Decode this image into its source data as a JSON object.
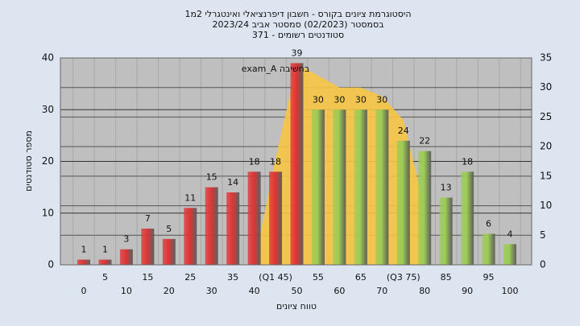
{
  "chart_data": {
    "type": "bar",
    "title_lines": [
      "היסטוגרמת ציונים בקורס - חשבון דיפרנציאלי ואינטגרלי 2מ1",
      "בסמסטר  (02/2023)  סמסטר אביב 2023/24",
      "סטודנטים רשומים - 371"
    ],
    "y_label": "מספר סטודנטים",
    "x_label": "טווח ציונים",
    "categories": [
      "0",
      "5",
      "10",
      "15",
      "20",
      "25",
      "30",
      "35",
      "40",
      "(Q1 45)",
      "50",
      "55",
      "60",
      "65",
      "70",
      "(Q3 75)",
      "80",
      "85",
      "90",
      "95",
      "100"
    ],
    "values": [
      1,
      1,
      3,
      7,
      5,
      11,
      15,
      14,
      18,
      18,
      39,
      30,
      30,
      30,
      30,
      24,
      22,
      13,
      18,
      6,
      4
    ],
    "colors": [
      "#e03535",
      "#e03535",
      "#e03535",
      "#e03535",
      "#e03535",
      "#e03535",
      "#e03535",
      "#e03535",
      "#e03535",
      "#e03535",
      "#e03535",
      "#9ccc55",
      "#9ccc55",
      "#9ccc55",
      "#9ccc55",
      "#9ccc55",
      "#9ccc55",
      "#9ccc55",
      "#9ccc55",
      "#9ccc55",
      "#9ccc55"
    ],
    "area": {
      "name": "exam_A בחשיבה",
      "color": "#f7c444",
      "axis": "y2",
      "values": [
        null,
        null,
        null,
        null,
        null,
        null,
        null,
        null,
        0,
        18,
        34,
        32,
        30,
        30,
        28.5,
        24.5,
        9.5,
        null,
        null,
        null,
        null
      ]
    },
    "ylim": [
      0,
      40
    ],
    "yticks": [
      0,
      10,
      20,
      30,
      40
    ],
    "y2lim": [
      0,
      35
    ],
    "y2ticks": [
      0,
      5,
      10,
      15,
      20,
      25,
      30,
      35
    ],
    "grid": true
  }
}
